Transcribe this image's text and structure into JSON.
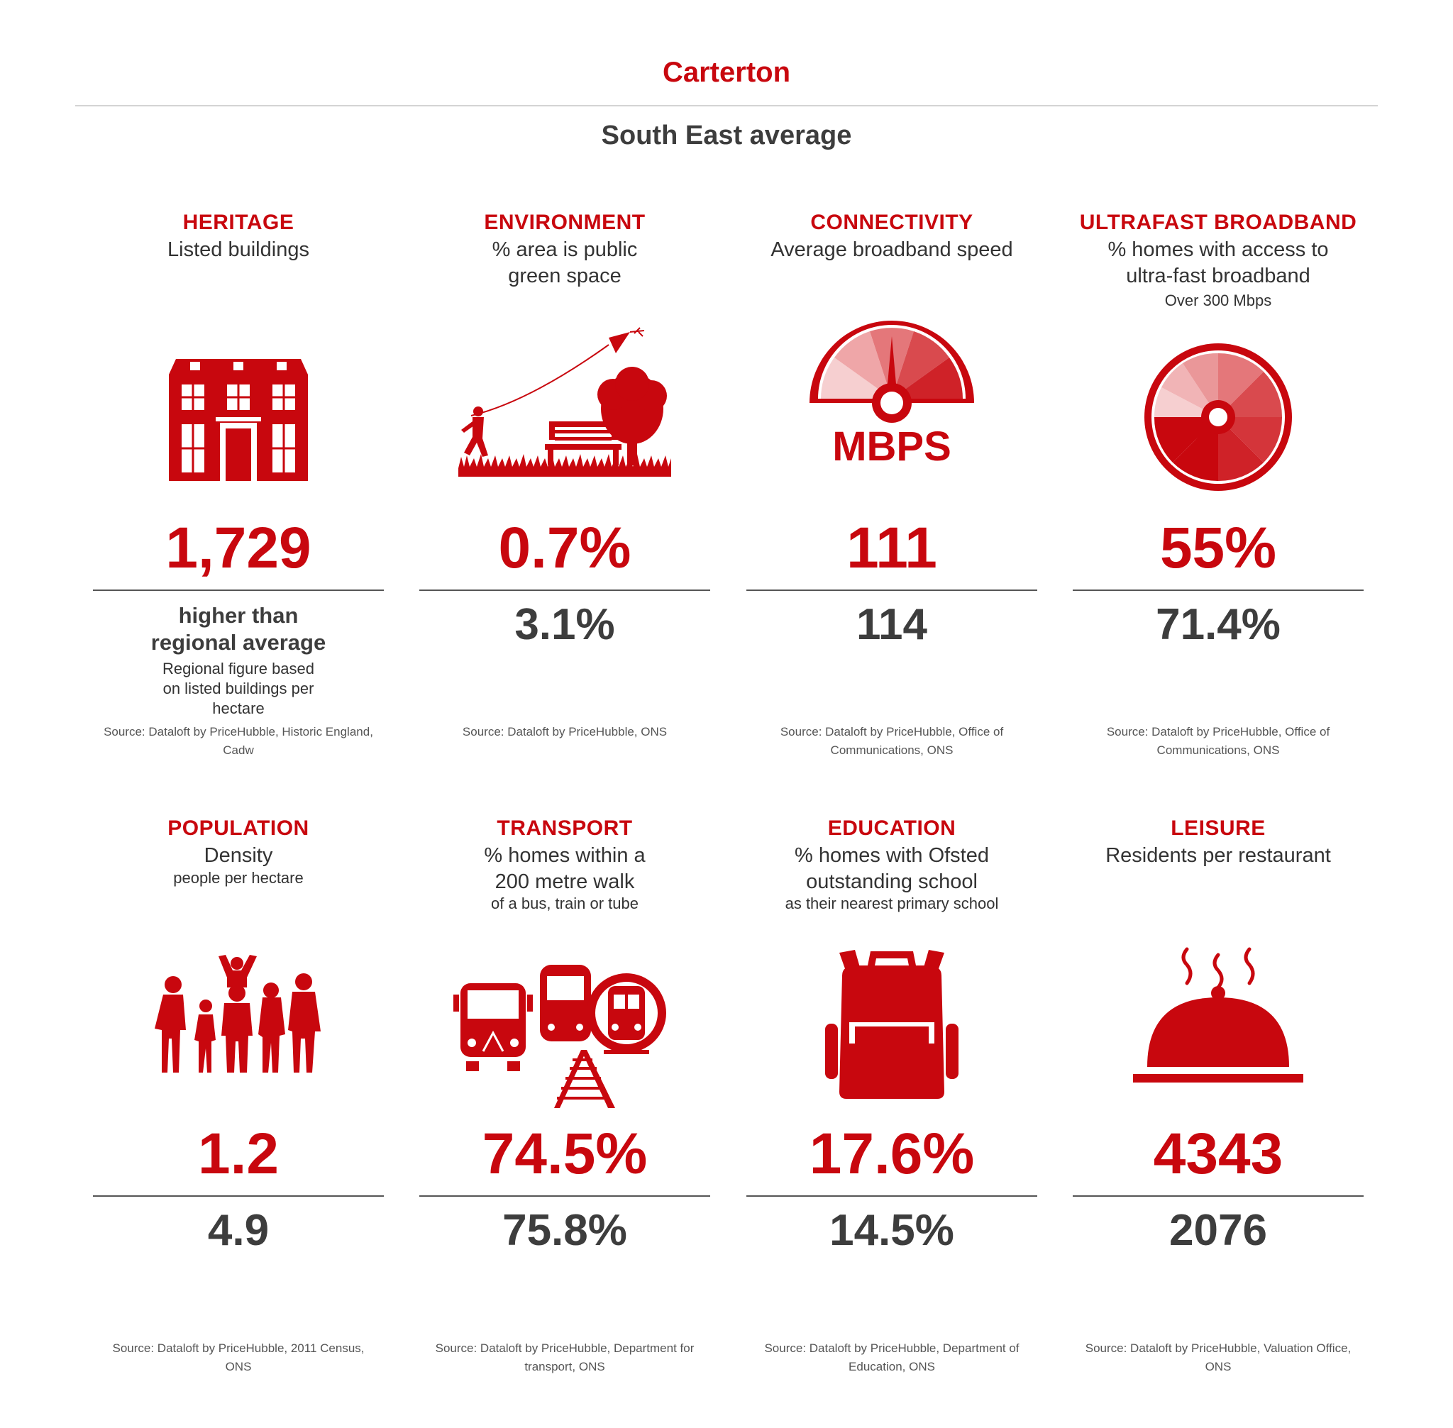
{
  "header": {
    "location": "Carterton",
    "comparison": "South East average"
  },
  "colors": {
    "accent": "#c8070e",
    "text": "#3d3d3d"
  },
  "cards": [
    {
      "category": "HERITAGE",
      "metric": "Listed buildings",
      "note": "",
      "icon": "house-icon",
      "value": "1,729",
      "average_text": "higher than regional average",
      "average_note": "Regional figure based on listed buildings per hectare",
      "source": "Source: Dataloft by PriceHubble, Historic England, Cadw"
    },
    {
      "category": "ENVIRONMENT",
      "metric": "% area is public green space",
      "note": "",
      "icon": "park-kite-icon",
      "value": "0.7%",
      "average": "3.1%",
      "source": "Source: Dataloft by PriceHubble, ONS"
    },
    {
      "category": "CONNECTIVITY",
      "metric": "Average broadband speed",
      "note": "",
      "icon": "speedometer-icon",
      "icon_label": "MBPS",
      "value": "111",
      "average": "114",
      "source": "Source: Dataloft by PriceHubble, Office of Communications, ONS"
    },
    {
      "category": "ULTRAFAST BROADBAND",
      "metric": "% homes with access to ultra-fast broadband",
      "note": "Over 300 Mbps",
      "icon": "dial-icon",
      "value": "55%",
      "average": "71.4%",
      "source": "Source: Dataloft by PriceHubble, Office of Communications, ONS"
    },
    {
      "category": "POPULATION",
      "metric": "Density",
      "note": "people per hectare",
      "icon": "people-icon",
      "value": "1.2",
      "average": "4.9",
      "source": "Source: Dataloft by PriceHubble, 2011 Census, ONS"
    },
    {
      "category": "TRANSPORT",
      "metric": "% homes within a 200 metre walk",
      "note": "of a bus, train or tube",
      "icon": "transport-icon",
      "value": "74.5%",
      "average": "75.8%",
      "source": "Source: Dataloft by PriceHubble, Department for transport, ONS"
    },
    {
      "category": "EDUCATION",
      "metric": "% homes with Ofsted outstanding school",
      "note": "as their nearest primary school",
      "icon": "backpack-icon",
      "value": "17.6%",
      "average": "14.5%",
      "source": "Source: Dataloft by PriceHubble, Department of Education, ONS"
    },
    {
      "category": "LEISURE",
      "metric": "Residents per restaurant",
      "note": "",
      "icon": "cloche-icon",
      "value": "4343",
      "average": "2076",
      "source": "Source: Dataloft by PriceHubble, Valuation Office, ONS"
    }
  ]
}
